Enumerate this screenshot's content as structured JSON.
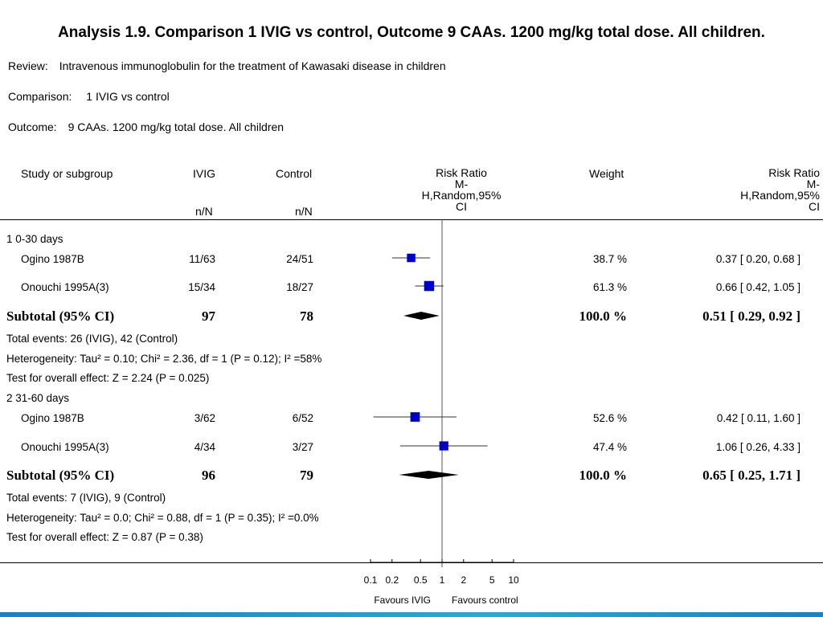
{
  "title": "Analysis 1.9.   Comparison 1 IVIG vs control, Outcome 9 CAAs. 1200 mg/kg total dose. All children.",
  "review": {
    "label": "Review:",
    "value": "Intravenous immunoglobulin for the treatment of Kawasaki disease in children"
  },
  "comparison": {
    "label": "Comparison:",
    "value": "1 IVIG vs control"
  },
  "outcome": {
    "label": "Outcome:",
    "value": "9 CAAs. 1200 mg/kg total dose. All children"
  },
  "headers": {
    "study": "Study or subgroup",
    "ivig": "IVIG",
    "control": "Control",
    "ivig_sub": "n/N",
    "control_sub": "n/N",
    "rr_plot": "Risk Ratio",
    "rr_plot_sub1": "M-",
    "rr_plot_sub2": "H,Random,95%",
    "rr_plot_sub3": "CI",
    "weight": "Weight",
    "rr": "Risk Ratio",
    "rr_sub1": "M-",
    "rr_sub2": "H,Random,95%",
    "rr_sub3": "CI"
  },
  "groups": [
    {
      "name": "1 0-30 days",
      "studies": [
        {
          "name": "Ogino 1987B",
          "ivig": "11/63",
          "control": "24/51",
          "weight": "38.7 %",
          "rr_text": "0.37 [ 0.20, 0.68 ]"
        },
        {
          "name": "Onouchi 1995A(3)",
          "ivig": "15/34",
          "control": "18/27",
          "weight": "61.3 %",
          "rr_text": "0.66 [ 0.42, 1.05 ]"
        }
      ],
      "subtotal": {
        "label": "Subtotal (95% CI)",
        "ivig": "97",
        "control": "78",
        "weight": "100.0 %",
        "rr_text": "0.51 [ 0.29, 0.92 ]"
      },
      "notes": [
        "Total events: 26 (IVIG), 42 (Control)",
        "Heterogeneity: Tau² = 0.10; Chi² = 2.36, df = 1 (P = 0.12); I² =58%",
        "Test for overall effect: Z = 2.24 (P = 0.025)"
      ]
    },
    {
      "name": "2 31-60 days",
      "studies": [
        {
          "name": "Ogino 1987B",
          "ivig": "3/62",
          "control": "6/52",
          "weight": "52.6 %",
          "rr_text": "0.42 [ 0.11, 1.60 ]"
        },
        {
          "name": "Onouchi 1995A(3)",
          "ivig": "4/34",
          "control": "3/27",
          "weight": "47.4 %",
          "rr_text": "1.06 [ 0.26, 4.33 ]"
        }
      ],
      "subtotal": {
        "label": "Subtotal (95% CI)",
        "ivig": "96",
        "control": "79",
        "weight": "100.0 %",
        "rr_text": "0.65 [ 0.25, 1.71 ]"
      },
      "notes": [
        "Total events: 7 (IVIG), 9 (Control)",
        "Heterogeneity: Tau² = 0.0; Chi² = 0.88, df = 1 (P = 0.35); I² =0.0%",
        "Test for overall effect: Z = 0.87 (P = 0.38)"
      ]
    }
  ],
  "axis": {
    "ticks": [
      "0.1",
      "0.2",
      "0.5",
      "1",
      "2",
      "5",
      "10"
    ],
    "favours_left": "Favours IVIG",
    "favours_right": "Favours control"
  },
  "chart_data": {
    "type": "forest",
    "scale": "log",
    "xlim": [
      0.1,
      10
    ],
    "reference_line": 1,
    "marker_color": "#0000cc",
    "studies": [
      {
        "group": "1 0-30 days",
        "name": "Ogino 1987B",
        "rr": 0.37,
        "lo": 0.2,
        "hi": 0.68,
        "weight": 38.7
      },
      {
        "group": "1 0-30 days",
        "name": "Onouchi 1995A(3)",
        "rr": 0.66,
        "lo": 0.42,
        "hi": 1.05,
        "weight": 61.3
      },
      {
        "group": "2 31-60 days",
        "name": "Ogino 1987B",
        "rr": 0.42,
        "lo": 0.11,
        "hi": 1.6,
        "weight": 52.6
      },
      {
        "group": "2 31-60 days",
        "name": "Onouchi 1995A(3)",
        "rr": 1.06,
        "lo": 0.26,
        "hi": 4.33,
        "weight": 47.4
      }
    ],
    "subtotals": [
      {
        "group": "1 0-30 days",
        "rr": 0.51,
        "lo": 0.29,
        "hi": 0.92
      },
      {
        "group": "2 31-60 days",
        "rr": 0.65,
        "lo": 0.25,
        "hi": 1.71
      }
    ]
  }
}
